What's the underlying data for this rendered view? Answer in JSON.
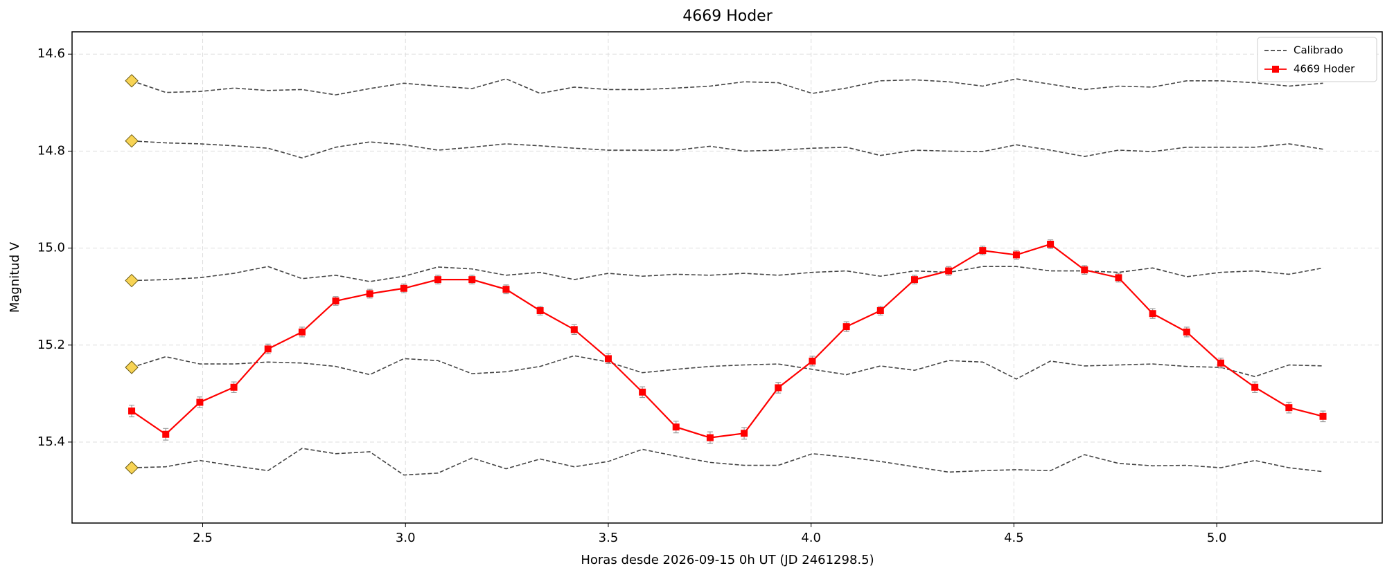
{
  "chart_data": {
    "type": "line",
    "title": "4669 Hoder",
    "x_label": "Horas desde 2026-09-15 0h UT (JD 2461298.5)",
    "y_label": "Magnitud V",
    "x": [
      2.325,
      2.409,
      2.493,
      2.577,
      2.661,
      2.745,
      2.828,
      2.912,
      2.996,
      3.08,
      3.164,
      3.248,
      3.332,
      3.416,
      3.5,
      3.584,
      3.667,
      3.751,
      3.835,
      3.919,
      4.003,
      4.087,
      4.171,
      4.255,
      4.339,
      4.423,
      4.506,
      4.59,
      4.674,
      4.758,
      4.842,
      4.926,
      5.01,
      5.094,
      5.178,
      5.262
    ],
    "xlim": [
      2.178,
      5.408
    ],
    "xticks": [
      2.5,
      3.0,
      3.5,
      4.0,
      4.5,
      5.0
    ],
    "ylim": [
      15.567,
      14.554
    ],
    "yticks": [
      14.6,
      14.8,
      15.0,
      15.2,
      15.4
    ],
    "y_inverted": true,
    "grid": true,
    "legend_position": "upper right",
    "start_marker_color": "#f7d354",
    "series": [
      {
        "name": "Calibrado",
        "color": "#444444",
        "dashed": true,
        "values": [
          14.655,
          14.679,
          14.677,
          14.67,
          14.675,
          14.673,
          14.684,
          14.671,
          14.66,
          14.666,
          14.671,
          14.651,
          14.681,
          14.668,
          14.673,
          14.673,
          14.67,
          14.666,
          14.657,
          14.659,
          14.681,
          14.67,
          14.655,
          14.653,
          14.657,
          14.666,
          14.651,
          14.662,
          14.673,
          14.666,
          14.668,
          14.655,
          14.655,
          14.659,
          14.666,
          14.66
        ]
      },
      {
        "color": "#444444",
        "dashed": true,
        "values": [
          14.779,
          14.783,
          14.785,
          14.789,
          14.794,
          14.814,
          14.792,
          14.781,
          14.787,
          14.798,
          14.792,
          14.785,
          14.789,
          14.794,
          14.798,
          14.798,
          14.798,
          14.79,
          14.8,
          14.798,
          14.794,
          14.792,
          14.809,
          14.798,
          14.8,
          14.801,
          14.787,
          14.798,
          14.811,
          14.798,
          14.801,
          14.792,
          14.792,
          14.792,
          14.785,
          14.796
        ]
      },
      {
        "color": "#444444",
        "dashed": true,
        "values": [
          15.067,
          15.065,
          15.061,
          15.052,
          15.038,
          15.063,
          15.056,
          15.069,
          15.058,
          15.039,
          15.043,
          15.056,
          15.05,
          15.065,
          15.052,
          15.058,
          15.054,
          15.056,
          15.052,
          15.056,
          15.05,
          15.047,
          15.058,
          15.047,
          15.05,
          15.038,
          15.038,
          15.047,
          15.047,
          15.05,
          15.041,
          15.059,
          15.05,
          15.047,
          15.054,
          15.041
        ]
      },
      {
        "color": "#444444",
        "dashed": true,
        "values": [
          15.246,
          15.224,
          15.239,
          15.239,
          15.235,
          15.237,
          15.244,
          15.261,
          15.228,
          15.232,
          15.259,
          15.255,
          15.244,
          15.222,
          15.235,
          15.257,
          15.25,
          15.244,
          15.241,
          15.239,
          15.25,
          15.261,
          15.243,
          15.252,
          15.232,
          15.235,
          15.27,
          15.233,
          15.243,
          15.241,
          15.239,
          15.244,
          15.246,
          15.265,
          15.241,
          15.243
        ]
      },
      {
        "color": "#444444",
        "dashed": true,
        "values": [
          15.453,
          15.451,
          15.438,
          15.449,
          15.459,
          15.413,
          15.424,
          15.42,
          15.468,
          15.464,
          15.433,
          15.455,
          15.435,
          15.451,
          15.44,
          15.415,
          15.429,
          15.442,
          15.448,
          15.448,
          15.424,
          15.431,
          15.44,
          15.451,
          15.462,
          15.459,
          15.457,
          15.459,
          15.426,
          15.444,
          15.449,
          15.448,
          15.453,
          15.438,
          15.453,
          15.461
        ]
      },
      {
        "name": "4669 Hoder",
        "color": "#ff0000",
        "marker": "square",
        "values": [
          15.336,
          15.384,
          15.318,
          15.287,
          15.208,
          15.173,
          15.109,
          15.094,
          15.083,
          15.065,
          15.065,
          15.085,
          15.129,
          15.168,
          15.228,
          15.297,
          15.369,
          15.391,
          15.382,
          15.288,
          15.233,
          15.162,
          15.129,
          15.065,
          15.047,
          15.005,
          15.014,
          14.992,
          15.045,
          15.061,
          15.135,
          15.173,
          15.237,
          15.287,
          15.329,
          15.347
        ],
        "errors": [
          0.012,
          0.012,
          0.011,
          0.011,
          0.01,
          0.01,
          0.009,
          0.009,
          0.009,
          0.009,
          0.009,
          0.009,
          0.009,
          0.01,
          0.01,
          0.011,
          0.012,
          0.012,
          0.012,
          0.011,
          0.01,
          0.01,
          0.009,
          0.009,
          0.009,
          0.009,
          0.009,
          0.009,
          0.009,
          0.009,
          0.01,
          0.01,
          0.01,
          0.011,
          0.011,
          0.011
        ]
      }
    ]
  }
}
